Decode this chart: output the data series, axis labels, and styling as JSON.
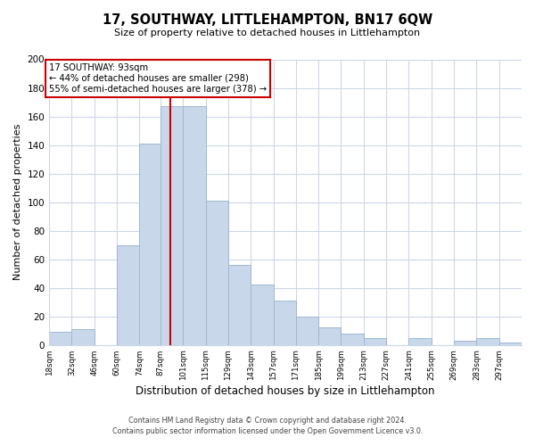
{
  "title": "17, SOUTHWAY, LITTLEHAMPTON, BN17 6QW",
  "subtitle": "Size of property relative to detached houses in Littlehampton",
  "xlabel": "Distribution of detached houses by size in Littlehampton",
  "ylabel": "Number of detached properties",
  "bins": [
    18,
    32,
    46,
    60,
    74,
    87,
    101,
    115,
    129,
    143,
    157,
    171,
    185,
    199,
    213,
    227,
    241,
    255,
    269,
    283,
    297
  ],
  "bin_labels": [
    "18sqm",
    "32sqm",
    "46sqm",
    "60sqm",
    "74sqm",
    "87sqm",
    "101sqm",
    "115sqm",
    "129sqm",
    "143sqm",
    "157sqm",
    "171sqm",
    "185sqm",
    "199sqm",
    "213sqm",
    "227sqm",
    "241sqm",
    "255sqm",
    "269sqm",
    "283sqm",
    "297sqm"
  ],
  "counts": [
    9,
    11,
    0,
    70,
    141,
    167,
    167,
    101,
    56,
    42,
    31,
    20,
    12,
    8,
    5,
    0,
    5,
    0,
    3,
    5,
    2
  ],
  "bar_color": "#c8d8ea",
  "bar_edge_color": "#a0b8d0",
  "vline_x": 93,
  "vline_color": "#cc0000",
  "annotation_title": "17 SOUTHWAY: 93sqm",
  "annotation_line1": "← 44% of detached houses are smaller (298)",
  "annotation_line2": "55% of semi-detached houses are larger (378) →",
  "annotation_box_color": "white",
  "annotation_box_edge": "#cc0000",
  "ylim": [
    0,
    200
  ],
  "yticks": [
    0,
    20,
    40,
    60,
    80,
    100,
    120,
    140,
    160,
    180,
    200
  ],
  "footer1": "Contains HM Land Registry data © Crown copyright and database right 2024.",
  "footer2": "Contains public sector information licensed under the Open Government Licence v3.0.",
  "background_color": "#ffffff",
  "grid_color": "#ccd8e8"
}
